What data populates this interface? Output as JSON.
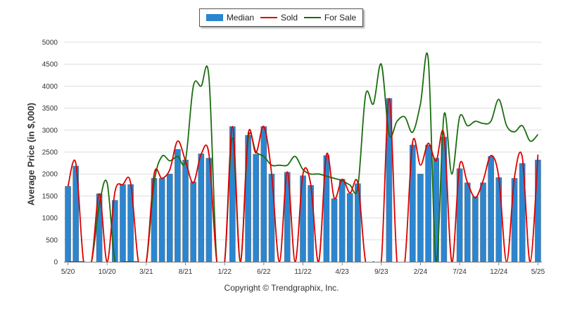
{
  "legend": {
    "median_label": "Median",
    "sold_label": "Sold",
    "forsale_label": "For Sale"
  },
  "copyright": "Copyright © Trendgraphix, Inc.",
  "colors": {
    "median": "#2a86d1",
    "median_edge": "#5a6b7a",
    "sold": "#dd0000",
    "forsale": "#1a6e10",
    "grid": "#dddddd",
    "axis": "#888888"
  },
  "chart_data": {
    "type": "bar",
    "ylabel": "Average Price (in $,000)",
    "ylim": [
      0,
      5000
    ],
    "yticks": [
      0,
      500,
      1000,
      1500,
      2000,
      2500,
      3000,
      3500,
      4000,
      4500,
      5000
    ],
    "xtick_labels": [
      "5/20",
      "10/20",
      "3/21",
      "8/21",
      "1/22",
      "6/22",
      "11/22",
      "4/23",
      "9/23",
      "2/24",
      "7/24",
      "12/24",
      "5/25"
    ],
    "xtick_indices": [
      0,
      5,
      10,
      15,
      20,
      25,
      30,
      35,
      40,
      45,
      50,
      55,
      60
    ],
    "grid": true,
    "legend_position": "top-center",
    "series": [
      {
        "name": "Median",
        "kind": "bar",
        "values": [
          1720,
          2180,
          0,
          0,
          1550,
          0,
          1400,
          1760,
          1760,
          0,
          0,
          1900,
          1900,
          2000,
          2560,
          2320,
          1820,
          2460,
          2360,
          0,
          0,
          3080,
          0,
          2880,
          2450,
          3080,
          2000,
          0,
          2040,
          0,
          1960,
          1740,
          0,
          2420,
          1440,
          1880,
          1560,
          1780,
          0,
          0,
          0,
          3720,
          0,
          0,
          2660,
          2000,
          2660,
          2360,
          2840,
          0,
          2120,
          1800,
          1480,
          1800,
          2400,
          1920,
          0,
          1900,
          2240,
          0,
          2320
        ]
      },
      {
        "name": "Sold",
        "kind": "line",
        "values": [
          1720,
          2250,
          0,
          0,
          1550,
          0,
          1600,
          1760,
          1800,
          0,
          0,
          2000,
          1900,
          2100,
          2750,
          2300,
          1800,
          2450,
          2450,
          0,
          0,
          3080,
          0,
          2900,
          2480,
          3080,
          2000,
          0,
          2050,
          0,
          2000,
          1760,
          0,
          2440,
          1450,
          1880,
          1570,
          1800,
          0,
          0,
          0,
          3720,
          0,
          0,
          2720,
          2200,
          2700,
          2300,
          2900,
          0,
          2200,
          1800,
          1460,
          1850,
          2420,
          1920,
          0,
          1920,
          2380,
          0,
          2440
        ]
      },
      {
        "name": "For Sale",
        "kind": "line",
        "values": [
          0,
          0,
          0,
          0,
          1300,
          1800,
          0,
          0,
          0,
          0,
          0,
          1800,
          2400,
          2300,
          2400,
          2300,
          4000,
          4000,
          4200,
          0,
          0,
          2820,
          0,
          2800,
          2500,
          2400,
          2200,
          2200,
          2200,
          2400,
          2100,
          2000,
          2000,
          1950,
          1900,
          1850,
          1750,
          1700,
          3800,
          3600,
          4500,
          2900,
          3200,
          3300,
          2950,
          3600,
          4600,
          0,
          3350,
          2000,
          3300,
          3100,
          3200,
          3150,
          3200,
          3700,
          3100,
          2960,
          3100,
          2750,
          2900
        ]
      }
    ]
  }
}
